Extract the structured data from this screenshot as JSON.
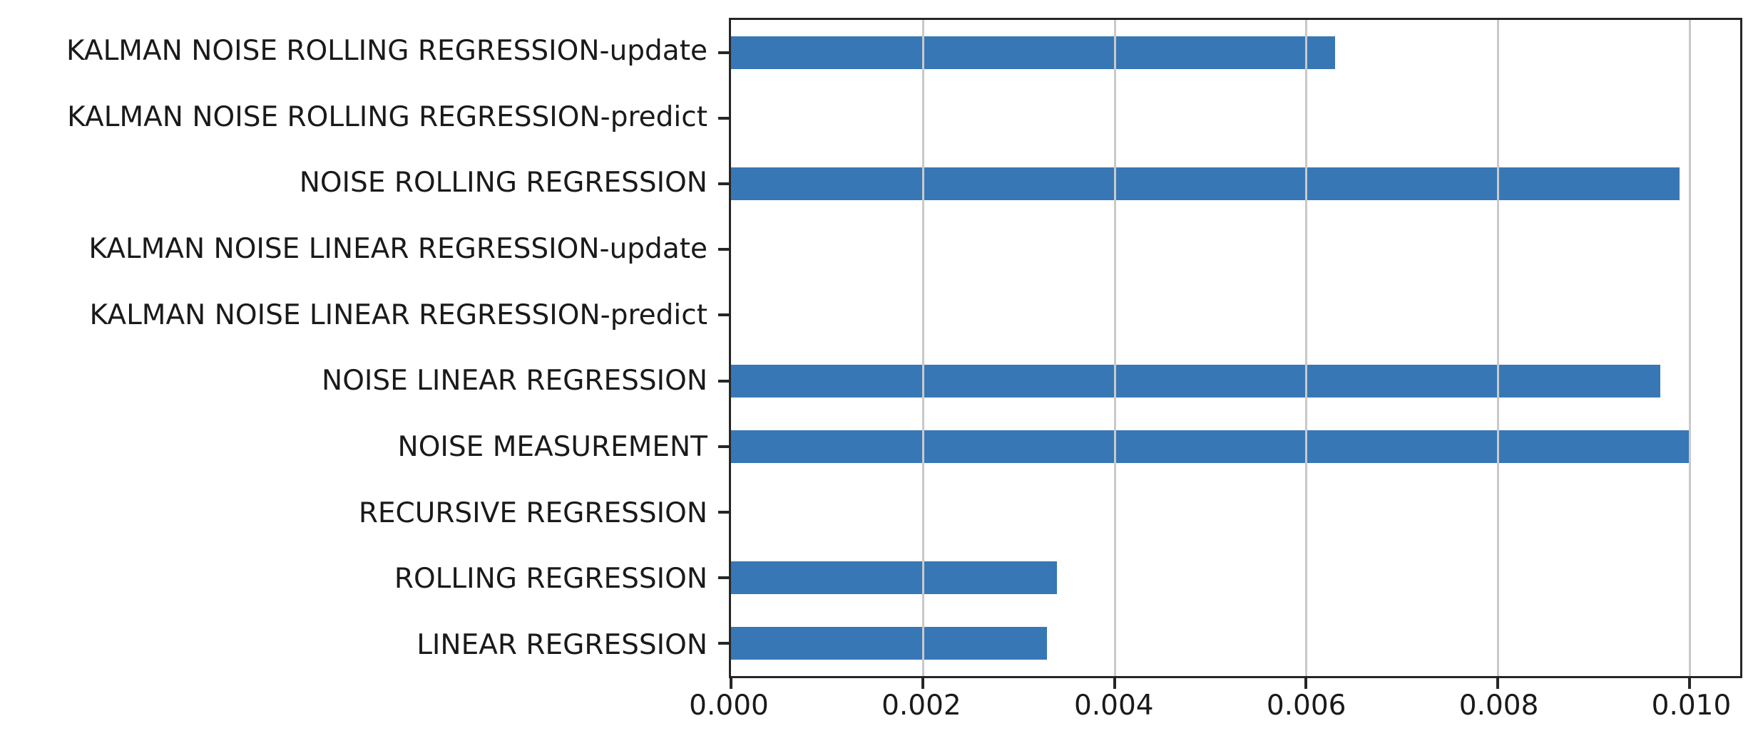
{
  "chart_data": {
    "type": "bar",
    "orientation": "horizontal",
    "title": "",
    "xlabel": "",
    "ylabel": "",
    "categories": [
      "KALMAN NOISE ROLLING REGRESSION-update",
      "KALMAN NOISE ROLLING REGRESSION-predict",
      "NOISE ROLLING REGRESSION",
      "KALMAN NOISE LINEAR REGRESSION-update",
      "KALMAN NOISE LINEAR REGRESSION-predict",
      "NOISE LINEAR REGRESSION",
      "NOISE MEASUREMENT",
      "RECURSIVE REGRESSION",
      "ROLLING REGRESSION",
      "LINEAR REGRESSION"
    ],
    "values": [
      0.0063,
      0,
      0.0099,
      0,
      0,
      0.0097,
      0.01,
      0,
      0.0034,
      0.0033
    ],
    "xticks": [
      "0.000",
      "0.002",
      "0.004",
      "0.006",
      "0.008",
      "0.010"
    ],
    "xtick_values": [
      0,
      0.002,
      0.004,
      0.006,
      0.008,
      0.01
    ],
    "xlim": [
      0,
      0.01053
    ],
    "grid": true,
    "grid_axis": "x",
    "legend": false,
    "bar_color": "#3877b5",
    "grid_color": "#c9c9c9",
    "spine_color": "#262626",
    "text_color": "#1a1a1a",
    "background_color": "#ffffff"
  }
}
